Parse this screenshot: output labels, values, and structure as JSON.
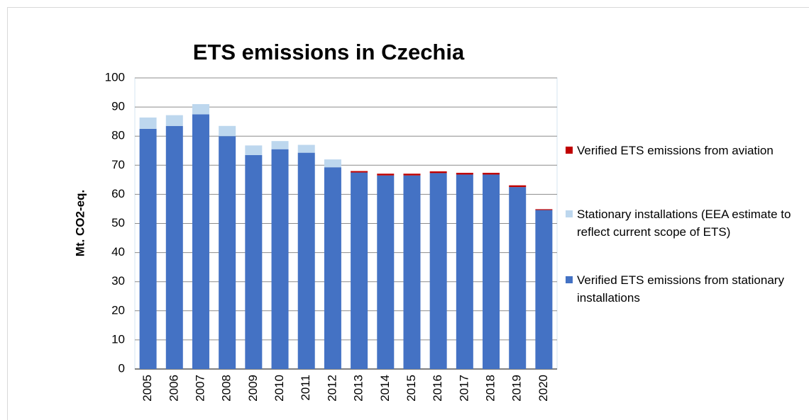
{
  "chart_data": {
    "type": "stacked_bar",
    "title": "ETS emissions in Czechia",
    "y_label": "Mt. CO2-eq.",
    "categories": [
      "2005",
      "2006",
      "2007",
      "2008",
      "2009",
      "2010",
      "2011",
      "2012",
      "2013",
      "2014",
      "2015",
      "2016",
      "2017",
      "2018",
      "2019",
      "2020"
    ],
    "series": [
      {
        "name": "Verified ETS emissions from stationary installations",
        "color": "#4472c4",
        "values": [
          82.5,
          83.5,
          87.5,
          80,
          73.5,
          75.5,
          74.3,
          69.3,
          67.5,
          66.5,
          66.5,
          67.3,
          66.8,
          66.8,
          62.5,
          54.6
        ]
      },
      {
        "name": "Stationary installations (EEA estimate to reflect current scope of ETS)",
        "color": "#bdd7ee",
        "values": [
          3.9,
          3.7,
          3.5,
          3.5,
          3.3,
          2.8,
          2.7,
          2.7,
          0,
          0,
          0,
          0,
          0,
          0,
          0,
          0
        ]
      },
      {
        "name": "Verified ETS emissions from aviation",
        "color": "#c00000",
        "values": [
          0,
          0,
          0,
          0,
          0,
          0,
          0,
          0,
          0.5,
          0.6,
          0.6,
          0.6,
          0.6,
          0.6,
          0.6,
          0.3
        ]
      }
    ],
    "ylim": [
      0,
      100
    ],
    "yticks": [
      0,
      10,
      20,
      30,
      40,
      50,
      60,
      70,
      80,
      90,
      100
    ],
    "grid": true,
    "legend": "right"
  }
}
